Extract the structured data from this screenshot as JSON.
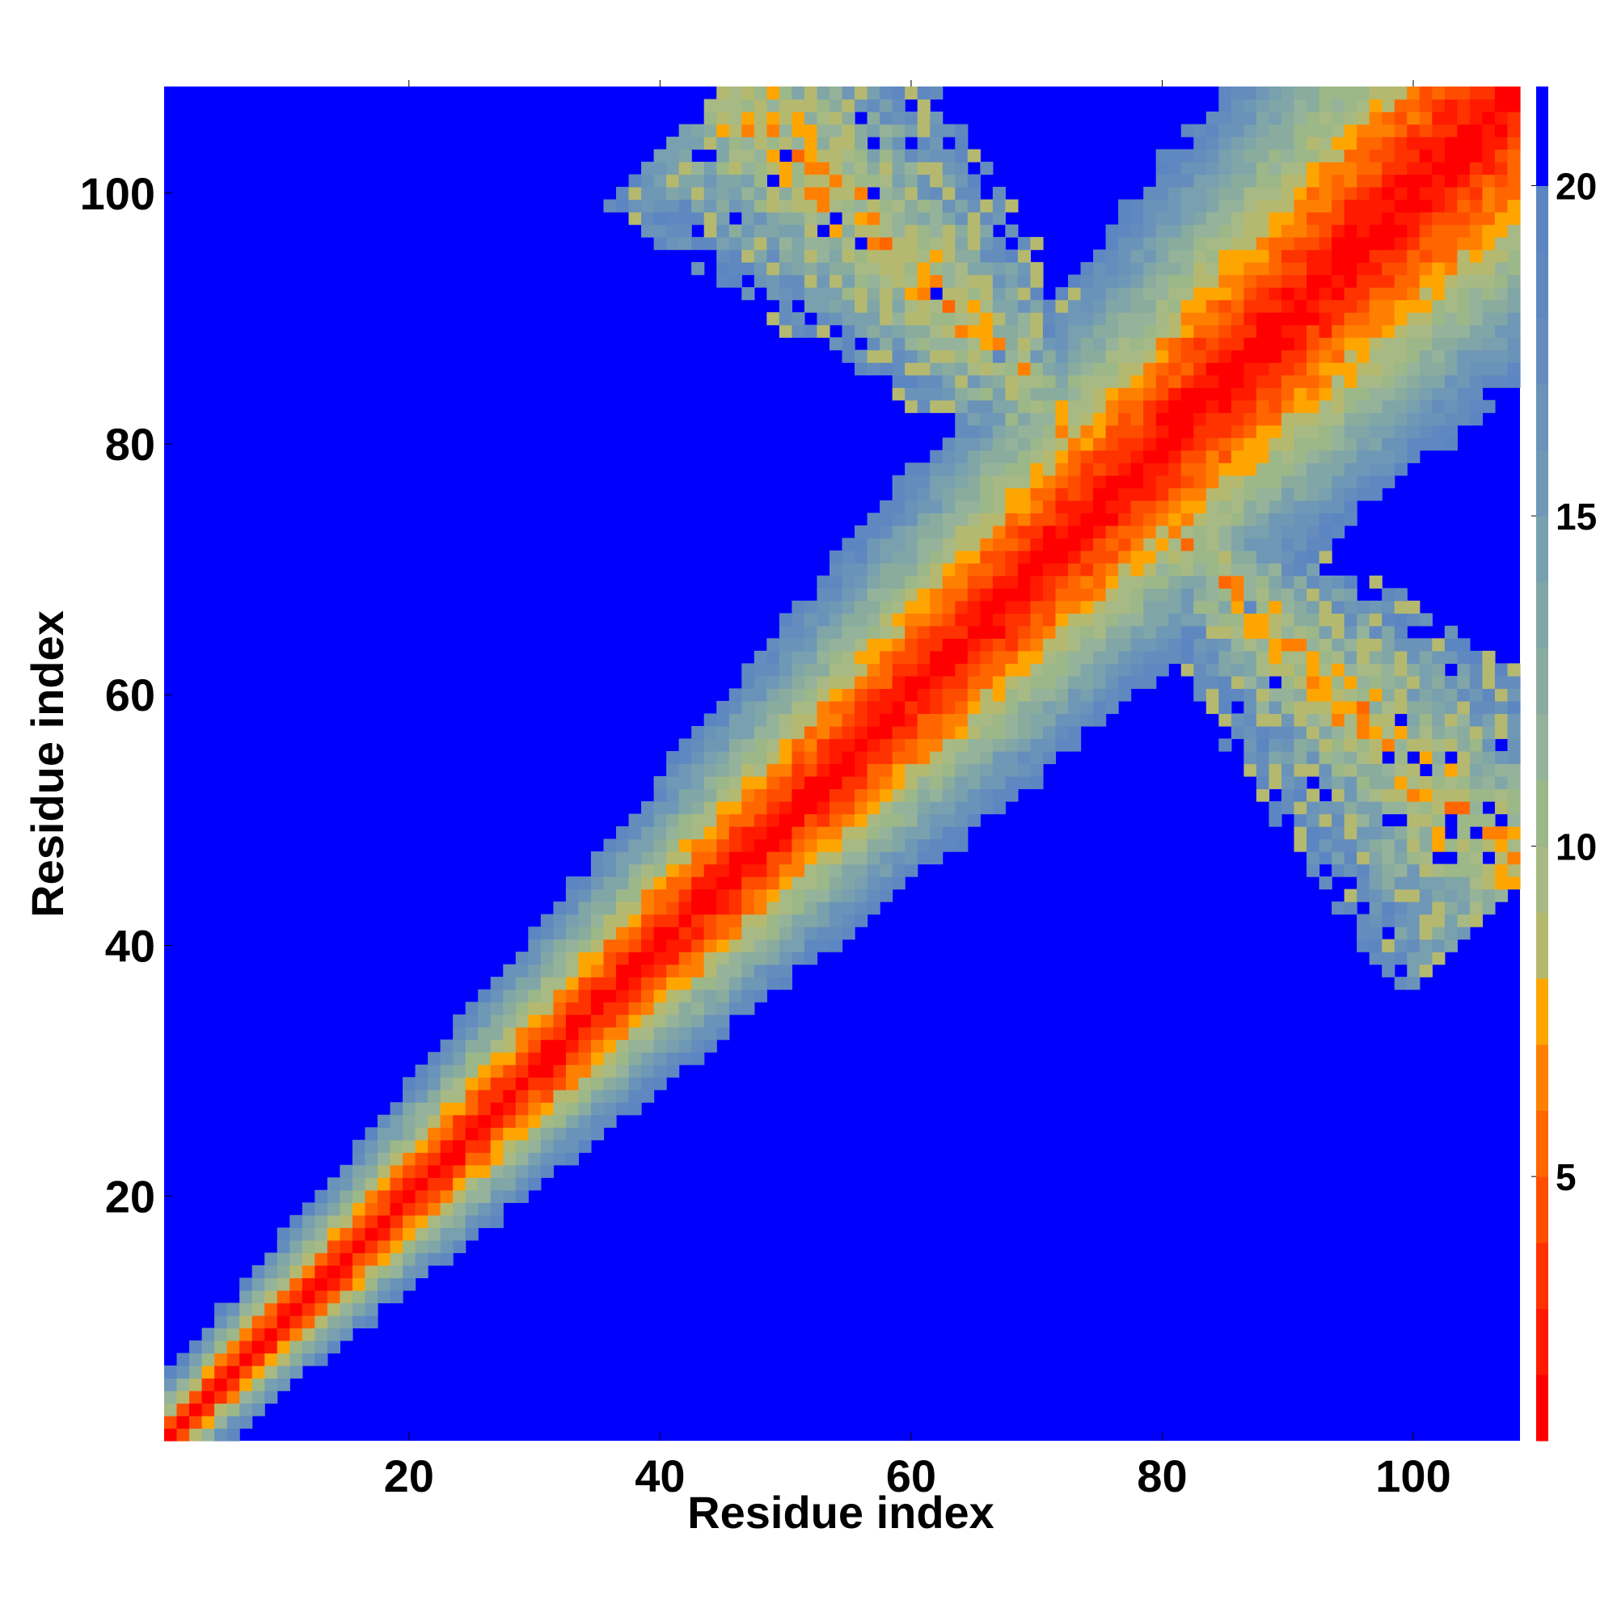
{
  "chart_data": {
    "type": "heatmap",
    "title": "",
    "xlabel": "Residue index",
    "ylabel": "Residue index",
    "xlim": [
      1,
      108
    ],
    "ylim": [
      1,
      108
    ],
    "xticks": [
      20,
      40,
      60,
      80,
      100
    ],
    "yticks": [
      20,
      40,
      60,
      80,
      100
    ],
    "colorbar": {
      "ticks": [
        5,
        10,
        15,
        20
      ],
      "range": [
        1,
        21.5
      ],
      "levels": [
        {
          "max": 2,
          "color": "#ff0000"
        },
        {
          "max": 3,
          "color": "#ff1a00"
        },
        {
          "max": 4,
          "color": "#ff3300"
        },
        {
          "max": 5,
          "color": "#ff4d00"
        },
        {
          "max": 6,
          "color": "#ff6600"
        },
        {
          "max": 7,
          "color": "#ff8000"
        },
        {
          "max": 8,
          "color": "#ffa500"
        },
        {
          "max": 9,
          "color": "#b5b96f"
        },
        {
          "max": 10,
          "color": "#a7b984"
        },
        {
          "max": 11,
          "color": "#9cb788"
        },
        {
          "max": 12,
          "color": "#95b39a"
        },
        {
          "max": 13,
          "color": "#8aac9e"
        },
        {
          "max": 14,
          "color": "#81a6a8"
        },
        {
          "max": 15,
          "color": "#78a0ae"
        },
        {
          "max": 16,
          "color": "#6f98b6"
        },
        {
          "max": 17,
          "color": "#6a93b9"
        },
        {
          "max": 18,
          "color": "#648dbd"
        },
        {
          "max": 19,
          "color": "#5f88c0"
        },
        {
          "max": 20,
          "color": "#5b86c2"
        },
        {
          "max": 21.5,
          "color": "#0000ff"
        }
      ]
    },
    "description_of_values": {
      "main_diagonal": {
        "from": [
          1,
          1
        ],
        "to": [
          108,
          108
        ],
        "center_value": 1
      },
      "anti_diagonal_contacts": {
        "center": [
          77,
          77
        ],
        "arm_end_upper_left": [
          44,
          106
        ],
        "arm_end_lower_right": [
          106,
          44
        ],
        "min_value": 7
      }
    }
  }
}
